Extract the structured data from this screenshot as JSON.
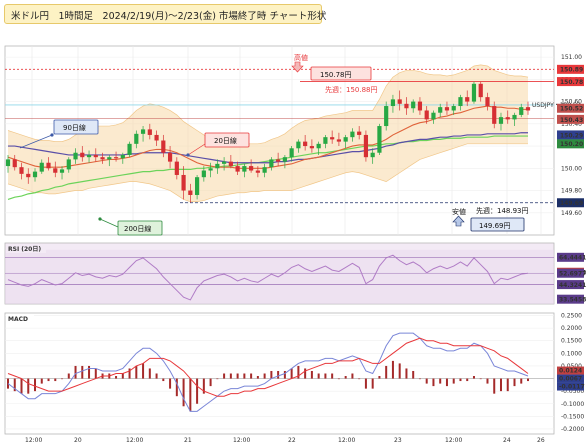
{
  "title": "米ドル円　1時間足　2024/2/19(月)～2/23(金) 市場終了時 チャート形状",
  "chart_data": [
    {
      "type": "candlestick",
      "symbol_label": "USDJPY・150.52",
      "ylim": [
        149.4,
        151.1
      ],
      "y_ticks": [
        "151.00",
        "150.80",
        "150.60",
        "150.40",
        "150.20",
        "150.00",
        "149.80",
        "149.60"
      ],
      "x_ticks": [
        "12:00",
        "20",
        "12:00",
        "21",
        "12:00",
        "22",
        "12:00",
        "23",
        "12:00",
        "24",
        "26"
      ],
      "ohlc": [
        [
          150.02,
          150.12,
          149.96,
          150.08
        ],
        [
          150.08,
          150.12,
          149.98,
          150.01
        ],
        [
          150.01,
          150.05,
          149.9,
          149.95
        ],
        [
          149.95,
          150.0,
          149.86,
          149.92
        ],
        [
          149.92,
          150.0,
          149.88,
          149.97
        ],
        [
          149.97,
          150.08,
          149.95,
          150.05
        ],
        [
          150.05,
          150.1,
          149.98,
          150.0
        ],
        [
          150.0,
          150.06,
          149.92,
          149.96
        ],
        [
          149.96,
          150.02,
          149.9,
          149.99
        ],
        [
          149.99,
          150.1,
          149.96,
          150.08
        ],
        [
          150.08,
          150.18,
          150.04,
          150.14
        ],
        [
          150.14,
          150.2,
          150.06,
          150.1
        ],
        [
          150.1,
          150.16,
          150.05,
          150.12
        ],
        [
          150.12,
          150.18,
          150.06,
          150.1
        ],
        [
          150.1,
          150.14,
          150.04,
          150.08
        ],
        [
          150.08,
          150.12,
          150.02,
          150.1
        ],
        [
          150.1,
          150.15,
          150.06,
          150.09
        ],
        [
          150.09,
          150.14,
          150.04,
          150.12
        ],
        [
          150.12,
          150.24,
          150.1,
          150.22
        ],
        [
          150.22,
          150.34,
          150.18,
          150.31
        ],
        [
          150.31,
          150.38,
          150.24,
          150.35
        ],
        [
          150.35,
          150.4,
          150.26,
          150.3
        ],
        [
          150.3,
          150.34,
          150.2,
          150.25
        ],
        [
          150.25,
          150.3,
          150.1,
          150.14
        ],
        [
          150.14,
          150.2,
          150.0,
          150.06
        ],
        [
          150.06,
          150.1,
          149.9,
          149.94
        ],
        [
          149.94,
          150.02,
          149.72,
          149.8
        ],
        [
          149.8,
          149.86,
          149.69,
          149.76
        ],
        [
          149.76,
          149.94,
          149.72,
          149.92
        ],
        [
          149.92,
          150.02,
          149.88,
          149.98
        ],
        [
          149.98,
          150.05,
          149.92,
          150.0
        ],
        [
          150.0,
          150.08,
          149.95,
          150.04
        ],
        [
          150.04,
          150.1,
          149.98,
          150.06
        ],
        [
          150.06,
          150.12,
          150.0,
          150.02
        ],
        [
          150.02,
          150.06,
          149.94,
          149.97
        ],
        [
          149.97,
          150.04,
          149.92,
          150.02
        ],
        [
          150.02,
          150.08,
          149.96,
          149.98
        ],
        [
          149.98,
          150.02,
          149.92,
          149.96
        ],
        [
          149.96,
          150.04,
          149.92,
          150.01
        ],
        [
          150.01,
          150.1,
          149.98,
          150.08
        ],
        [
          150.08,
          150.14,
          150.02,
          150.06
        ],
        [
          150.06,
          150.12,
          150.0,
          150.1
        ],
        [
          150.1,
          150.2,
          150.06,
          150.18
        ],
        [
          150.18,
          150.26,
          150.14,
          150.24
        ],
        [
          150.24,
          150.3,
          150.16,
          150.2
        ],
        [
          150.2,
          150.26,
          150.14,
          150.18
        ],
        [
          150.18,
          150.24,
          150.12,
          150.22
        ],
        [
          150.22,
          150.3,
          150.18,
          150.28
        ],
        [
          150.28,
          150.34,
          150.22,
          150.26
        ],
        [
          150.26,
          150.32,
          150.2,
          150.24
        ],
        [
          150.24,
          150.3,
          150.18,
          150.28
        ],
        [
          150.28,
          150.36,
          150.24,
          150.33
        ],
        [
          150.33,
          150.38,
          150.26,
          150.3
        ],
        [
          150.3,
          150.34,
          150.06,
          150.1
        ],
        [
          150.1,
          150.18,
          150.04,
          150.14
        ],
        [
          150.14,
          150.4,
          150.12,
          150.38
        ],
        [
          150.38,
          150.6,
          150.34,
          150.56
        ],
        [
          150.56,
          150.66,
          150.5,
          150.62
        ],
        [
          150.62,
          150.7,
          150.52,
          150.58
        ],
        [
          150.58,
          150.64,
          150.48,
          150.54
        ],
        [
          150.54,
          150.62,
          150.5,
          150.6
        ],
        [
          150.6,
          150.64,
          150.48,
          150.52
        ],
        [
          150.52,
          150.56,
          150.4,
          150.44
        ],
        [
          150.44,
          150.52,
          150.4,
          150.5
        ],
        [
          150.5,
          150.58,
          150.46,
          150.55
        ],
        [
          150.55,
          150.6,
          150.48,
          150.52
        ],
        [
          150.52,
          150.58,
          150.48,
          150.56
        ],
        [
          150.56,
          150.66,
          150.52,
          150.64
        ],
        [
          150.64,
          150.7,
          150.56,
          150.6
        ],
        [
          150.6,
          150.78,
          150.58,
          150.76
        ],
        [
          150.76,
          150.78,
          150.6,
          150.64
        ],
        [
          150.64,
          150.68,
          150.52,
          150.56
        ],
        [
          150.56,
          150.6,
          150.36,
          150.4
        ],
        [
          150.4,
          150.5,
          150.34,
          150.46
        ],
        [
          150.46,
          150.52,
          150.4,
          150.44
        ],
        [
          150.44,
          150.5,
          150.38,
          150.48
        ],
        [
          150.48,
          150.58,
          150.46,
          150.55
        ],
        [
          150.55,
          150.6,
          150.48,
          150.52
        ]
      ],
      "ma20": [
        150.1,
        150.08,
        150.06,
        150.04,
        150.02,
        150.01,
        150.01,
        150.01,
        150.01,
        150.02,
        150.03,
        150.04,
        150.05,
        150.06,
        150.07,
        150.08,
        150.08,
        150.09,
        150.1,
        150.12,
        150.14,
        150.16,
        150.17,
        150.17,
        150.16,
        150.14,
        150.11,
        150.08,
        150.05,
        150.03,
        150.02,
        150.01,
        150.01,
        150.01,
        150.0,
        150.0,
        150.0,
        150.0,
        150.0,
        150.01,
        150.02,
        150.03,
        150.04,
        150.06,
        150.08,
        150.09,
        150.1,
        150.12,
        150.14,
        150.16,
        150.18,
        150.2,
        150.21,
        150.21,
        150.21,
        150.23,
        150.26,
        150.3,
        150.33,
        150.36,
        150.39,
        150.41,
        150.42,
        150.44,
        150.46,
        150.47,
        150.49,
        150.5,
        150.52,
        150.54,
        150.55,
        150.56,
        150.55,
        150.55,
        150.54,
        150.54,
        150.53,
        150.53
      ],
      "ma90": [
        150.2,
        150.2,
        150.19,
        150.18,
        150.17,
        150.16,
        150.15,
        150.14,
        150.13,
        150.12,
        150.12,
        150.12,
        150.12,
        150.12,
        150.12,
        150.12,
        150.12,
        150.12,
        150.13,
        150.13,
        150.14,
        150.14,
        150.14,
        150.14,
        150.14,
        150.13,
        150.12,
        150.11,
        150.1,
        150.09,
        150.08,
        150.07,
        150.06,
        150.05,
        150.05,
        150.05,
        150.05,
        150.05,
        150.05,
        150.05,
        150.06,
        150.06,
        150.07,
        150.08,
        150.08,
        150.09,
        150.1,
        150.11,
        150.12,
        150.13,
        150.14,
        150.15,
        150.15,
        150.16,
        150.17,
        150.18,
        150.2,
        150.21,
        150.23,
        150.24,
        150.25,
        150.26,
        150.26,
        150.27,
        150.28,
        150.28,
        150.29,
        150.29,
        150.3,
        150.3,
        150.3,
        150.31,
        150.31,
        150.31,
        150.31,
        150.31,
        150.32,
        150.32
      ],
      "ma200": [
        149.72,
        149.74,
        149.75,
        149.77,
        149.78,
        149.8,
        149.81,
        149.83,
        149.84,
        149.86,
        149.87,
        149.88,
        149.89,
        149.9,
        149.91,
        149.92,
        149.93,
        149.94,
        149.95,
        149.96,
        149.97,
        149.97,
        149.98,
        149.98,
        149.99,
        149.99,
        149.99,
        149.99,
        150.0,
        150.0,
        150.01,
        150.01,
        150.02,
        150.02,
        150.03,
        150.04,
        150.05,
        150.05,
        150.06,
        150.07,
        150.08,
        150.09,
        150.1,
        150.11,
        150.12,
        150.13,
        150.14,
        150.14,
        150.15,
        150.16,
        150.17,
        150.18,
        150.19,
        150.2,
        150.2,
        150.21,
        150.22,
        150.22,
        150.23,
        150.24,
        150.24,
        150.25,
        150.25,
        150.26,
        150.26,
        150.27,
        150.27,
        150.27,
        150.28,
        150.28,
        150.28,
        150.28,
        150.29,
        150.29,
        150.29,
        150.29,
        150.29,
        150.29
      ],
      "band_upper": [
        150.34,
        150.32,
        150.3,
        150.28,
        150.26,
        150.25,
        150.25,
        150.24,
        150.24,
        150.26,
        150.3,
        150.33,
        150.36,
        150.38,
        150.38,
        150.38,
        150.39,
        150.41,
        150.46,
        150.52,
        150.56,
        150.58,
        150.57,
        150.55,
        150.52,
        150.48,
        150.42,
        150.38,
        150.34,
        150.3,
        150.27,
        150.25,
        150.24,
        150.23,
        150.22,
        150.22,
        150.22,
        150.22,
        150.23,
        150.26,
        150.28,
        150.31,
        150.36,
        150.4,
        150.43,
        150.44,
        150.45,
        150.47,
        150.48,
        150.49,
        150.5,
        150.52,
        150.52,
        150.52,
        150.52,
        150.62,
        150.74,
        150.82,
        150.86,
        150.88,
        150.88,
        150.87,
        150.85,
        150.84,
        150.84,
        150.83,
        150.84,
        150.86,
        150.88,
        150.92,
        150.93,
        150.92,
        150.88,
        150.86,
        150.84,
        150.83,
        150.83,
        150.82
      ],
      "band_lower": [
        149.86,
        149.84,
        149.82,
        149.8,
        149.78,
        149.78,
        149.77,
        149.77,
        149.78,
        149.79,
        149.8,
        149.8,
        149.82,
        149.83,
        149.84,
        149.85,
        149.86,
        149.87,
        149.88,
        149.88,
        149.87,
        149.86,
        149.84,
        149.82,
        149.8,
        149.76,
        149.72,
        149.7,
        149.7,
        149.71,
        149.73,
        149.75,
        149.76,
        149.77,
        149.78,
        149.78,
        149.79,
        149.79,
        149.8,
        149.8,
        149.8,
        149.8,
        149.8,
        149.82,
        149.84,
        149.86,
        149.88,
        149.9,
        149.92,
        149.94,
        149.96,
        149.97,
        149.96,
        149.94,
        149.92,
        149.9,
        149.88,
        149.92,
        149.96,
        150.0,
        150.04,
        150.08,
        150.1,
        150.12,
        150.14,
        150.16,
        150.18,
        150.2,
        150.22,
        150.22,
        150.22,
        150.22,
        150.22,
        150.22,
        150.22,
        150.22,
        150.22,
        150.22
      ],
      "annotations": {
        "high_label": "高値",
        "high_price": "150.78円",
        "high_week": "先週：150.88円",
        "low_label": "安値",
        "low_price": "149.69円",
        "low_week": "先週：148.93円",
        "ma90_label": "90日線",
        "ma20_label": "20日線",
        "ma200_label": "200日線"
      },
      "price_tags": [
        {
          "value": "150.89",
          "color": "#e8383b",
          "y": 150.89
        },
        {
          "value": "150.78",
          "color": "#e8383b",
          "y": 150.78
        },
        {
          "value": "150.52",
          "color": "#c0504d",
          "y": 150.54
        },
        {
          "value": "150.43",
          "color": "#c0504d",
          "y": 150.44
        },
        {
          "value": "150.29",
          "color": "#2f3f8f",
          "y": 150.3
        },
        {
          "value": "150.20",
          "color": "#2e8b3f",
          "y": 150.22
        },
        {
          "value": "149.69",
          "color": "#1c2f66",
          "y": 149.69
        }
      ]
    },
    {
      "type": "line",
      "title": "RSI (20日)",
      "ylim": [
        30,
        75
      ],
      "tags": [
        {
          "value": "64.4441",
          "color": "#5a3b8a",
          "y": 64.44
        },
        {
          "value": "53.4344",
          "color": "#c04040",
          "y": 53.43
        },
        {
          "value": "52.6977",
          "color": "#5a3b8a",
          "y": 52.7
        },
        {
          "value": "44.3241",
          "color": "#5a3b8a",
          "y": 44.32
        },
        {
          "value": "33.5458",
          "color": "#5a3b8a",
          "y": 33.55
        }
      ],
      "rsi": [
        48,
        46,
        44,
        43,
        45,
        48,
        46,
        44,
        45,
        49,
        53,
        51,
        52,
        50,
        49,
        51,
        50,
        52,
        57,
        62,
        64,
        60,
        56,
        50,
        45,
        40,
        35,
        33,
        42,
        47,
        49,
        51,
        52,
        50,
        47,
        49,
        47,
        46,
        49,
        52,
        50,
        53,
        57,
        59,
        56,
        54,
        56,
        58,
        55,
        54,
        57,
        60,
        57,
        45,
        48,
        58,
        64,
        66,
        62,
        59,
        61,
        58,
        53,
        56,
        58,
        56,
        58,
        61,
        58,
        64,
        59,
        54,
        45,
        49,
        48,
        50,
        52,
        52.7
      ]
    },
    {
      "type": "bar+line",
      "title": "MACD",
      "ylim": [
        -0.22,
        0.26
      ],
      "tags": [
        {
          "value": "0.0124",
          "color": "#c04040",
          "y": 0.0124
        },
        {
          "value": "0.0067",
          "color": "#2f3f8f",
          "y": 0.0067
        },
        {
          "value": "-0.0117",
          "color": "#2f3f8f",
          "y": -0.0117
        }
      ],
      "y_ticks": [
        "0.2500",
        "0.2000",
        "0.1500",
        "0.1000",
        "0.0500",
        "0.0000",
        "-0.0500",
        "-0.1000",
        "-0.1500",
        "-0.2000"
      ],
      "macd": [
        -0.02,
        -0.04,
        -0.06,
        -0.08,
        -0.08,
        -0.06,
        -0.06,
        -0.06,
        -0.05,
        -0.02,
        0.02,
        0.03,
        0.04,
        0.04,
        0.03,
        0.03,
        0.03,
        0.04,
        0.07,
        0.1,
        0.12,
        0.12,
        0.1,
        0.07,
        0.03,
        -0.02,
        -0.08,
        -0.13,
        -0.13,
        -0.11,
        -0.09,
        -0.07,
        -0.05,
        -0.04,
        -0.04,
        -0.03,
        -0.03,
        -0.03,
        -0.02,
        0.0,
        0.01,
        0.02,
        0.04,
        0.06,
        0.07,
        0.07,
        0.07,
        0.08,
        0.08,
        0.07,
        0.08,
        0.09,
        0.08,
        0.03,
        0.02,
        0.07,
        0.13,
        0.17,
        0.18,
        0.18,
        0.18,
        0.16,
        0.13,
        0.12,
        0.12,
        0.11,
        0.11,
        0.12,
        0.12,
        0.14,
        0.13,
        0.1,
        0.05,
        0.04,
        0.03,
        0.03,
        0.02,
        0.01
      ],
      "signal": [
        0.02,
        0.01,
        0.0,
        -0.02,
        -0.03,
        -0.04,
        -0.05,
        -0.05,
        -0.05,
        -0.04,
        -0.03,
        -0.02,
        -0.01,
        0.0,
        0.01,
        0.01,
        0.02,
        0.02,
        0.03,
        0.05,
        0.06,
        0.08,
        0.08,
        0.08,
        0.07,
        0.05,
        0.03,
        0.0,
        -0.03,
        -0.05,
        -0.06,
        -0.07,
        -0.07,
        -0.06,
        -0.06,
        -0.05,
        -0.05,
        -0.04,
        -0.04,
        -0.03,
        -0.02,
        -0.01,
        0.0,
        0.01,
        0.03,
        0.04,
        0.05,
        0.06,
        0.06,
        0.07,
        0.07,
        0.07,
        0.08,
        0.07,
        0.06,
        0.06,
        0.08,
        0.1,
        0.12,
        0.14,
        0.15,
        0.16,
        0.15,
        0.15,
        0.14,
        0.14,
        0.13,
        0.13,
        0.13,
        0.13,
        0.13,
        0.12,
        0.11,
        0.09,
        0.08,
        0.06,
        0.04,
        0.02
      ]
    }
  ]
}
